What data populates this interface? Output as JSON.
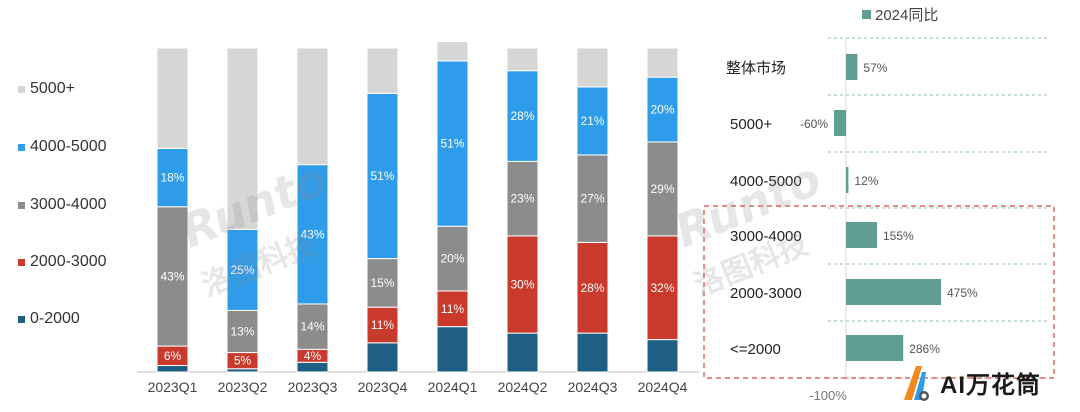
{
  "chart_data": [
    {
      "type": "bar",
      "stacked": true,
      "normalized": true,
      "categories": [
        "2023Q1",
        "2023Q2",
        "2023Q3",
        "2023Q4",
        "2024Q1",
        "2024Q2",
        "2024Q3",
        "2024Q4"
      ],
      "series": [
        {
          "name": "0-2000",
          "color": "#1f5f84",
          "values": [
            2,
            1,
            3,
            9,
            14,
            12,
            12,
            10
          ],
          "labels": [
            "",
            "",
            "",
            "",
            "",
            "",
            "",
            ""
          ]
        },
        {
          "name": "2000-3000",
          "color": "#c93a2c",
          "values": [
            6,
            5,
            4,
            11,
            11,
            30,
            28,
            32
          ],
          "labels": [
            "6%",
            "5%",
            "4%",
            "11%",
            "11%",
            "30%",
            "28%",
            "32%"
          ]
        },
        {
          "name": "3000-4000",
          "color": "#8c8c8c",
          "values": [
            43,
            13,
            14,
            15,
            20,
            23,
            27,
            29
          ],
          "labels": [
            "43%",
            "13%",
            "14%",
            "15%",
            "20%",
            "23%",
            "27%",
            "29%"
          ]
        },
        {
          "name": "4000-5000",
          "color": "#2e9ce8",
          "values": [
            18,
            25,
            43,
            51,
            51,
            28,
            21,
            20
          ],
          "labels": [
            "18%",
            "25%",
            "43%",
            "51%",
            "51%",
            "28%",
            "21%",
            "20%"
          ]
        },
        {
          "name": "5000+",
          "color": "#d6d6d6",
          "values": [
            31,
            56,
            36,
            14,
            6,
            7,
            12,
            9
          ],
          "labels": [
            "",
            "",
            "",
            "",
            "",
            "",
            "",
            ""
          ]
        }
      ],
      "ylim": [
        0,
        100
      ],
      "legend": "left"
    },
    {
      "type": "bar",
      "orientation": "horizontal",
      "legend_title": "2024同比",
      "color": "#5f9e93",
      "categories": [
        "整体市场",
        "5000+",
        "4000-5000",
        "3000-4000",
        "2000-3000",
        "<=2000"
      ],
      "values": [
        57,
        -60,
        12,
        155,
        475,
        286
      ],
      "labels": [
        "57%",
        "-60%",
        "12%",
        "155%",
        "475%",
        "286%"
      ],
      "xmin_label": "-100%",
      "highlight": [
        "3000-4000",
        "2000-3000",
        "<=2000"
      ]
    }
  ],
  "watermark": {
    "latin": "Runto",
    "cn": "洛图科技"
  },
  "logo": {
    "text": "AI万花筒",
    "color_orange": "#f08a1c",
    "color_blue": "#2e9ce8"
  }
}
